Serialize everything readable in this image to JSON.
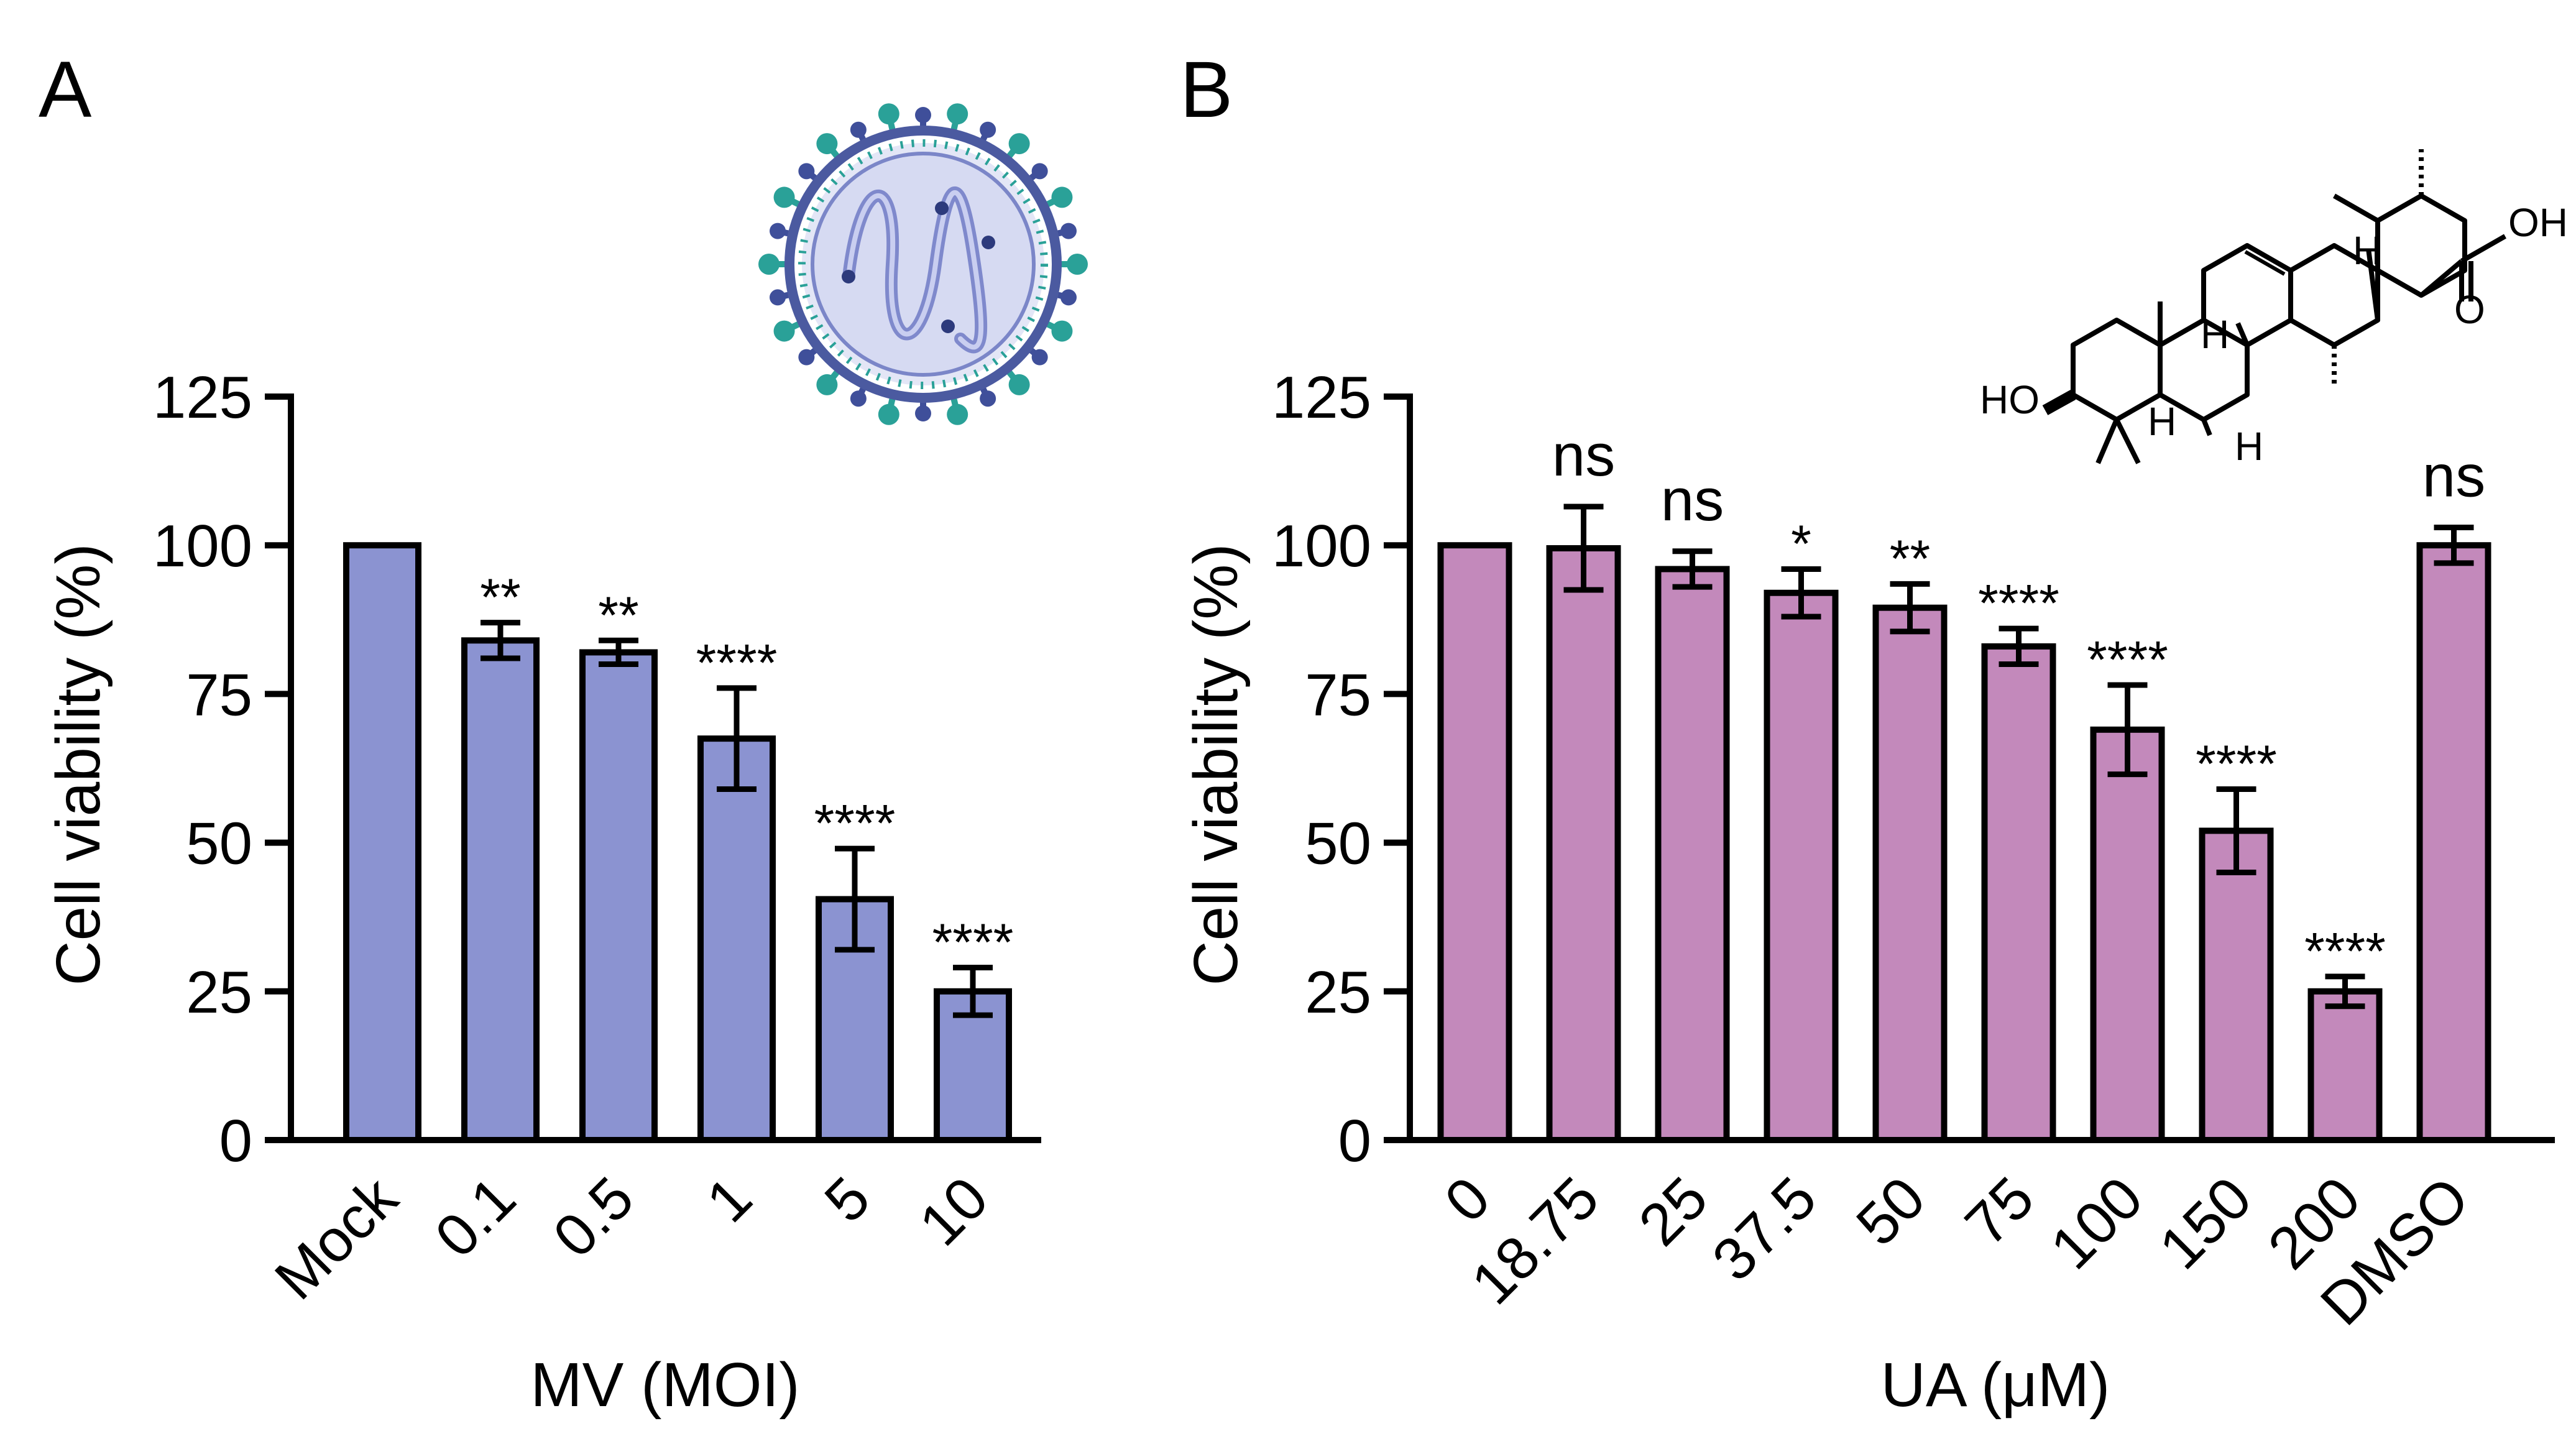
{
  "chart_data": [
    {
      "panel": "A",
      "type": "bar",
      "xlabel": "MV (MOI)",
      "ylabel": "Cell viability (%)",
      "ylim": [
        0,
        125
      ],
      "yticks": [
        0,
        25,
        50,
        75,
        100,
        125
      ],
      "categories": [
        "Mock",
        "0.1",
        "0.5",
        "1",
        "5",
        "10"
      ],
      "values": [
        100,
        84,
        82,
        67.5,
        40.5,
        25
      ],
      "errors": [
        0,
        3,
        2,
        8.5,
        8.5,
        4
      ],
      "significance": [
        "",
        "**",
        "**",
        "****",
        "****",
        "****"
      ],
      "bar_color": "#8b93d1",
      "icon": "virus-particle-icon"
    },
    {
      "panel": "B",
      "type": "bar",
      "xlabel": "UA (μM)",
      "ylabel": "Cell viability (%)",
      "ylim": [
        0,
        125
      ],
      "yticks": [
        0,
        25,
        50,
        75,
        100,
        125
      ],
      "categories": [
        "0",
        "18.75",
        "25",
        "37.5",
        "50",
        "75",
        "100",
        "150",
        "200",
        "DMSO"
      ],
      "values": [
        100,
        99.5,
        96,
        92,
        89.5,
        83,
        69,
        52,
        25,
        100
      ],
      "errors": [
        0,
        7,
        3,
        4,
        4,
        3,
        7.5,
        7,
        2.5,
        3
      ],
      "significance": [
        "",
        "ns",
        "ns",
        "*",
        "**",
        "****",
        "****",
        "****",
        "****",
        "ns"
      ],
      "bar_color": "#c389bb",
      "structure_labels": [
        "OH",
        "O",
        "HO",
        "H",
        "H",
        "H",
        "H"
      ],
      "icon": "ursolic-acid-structure-icon"
    }
  ]
}
